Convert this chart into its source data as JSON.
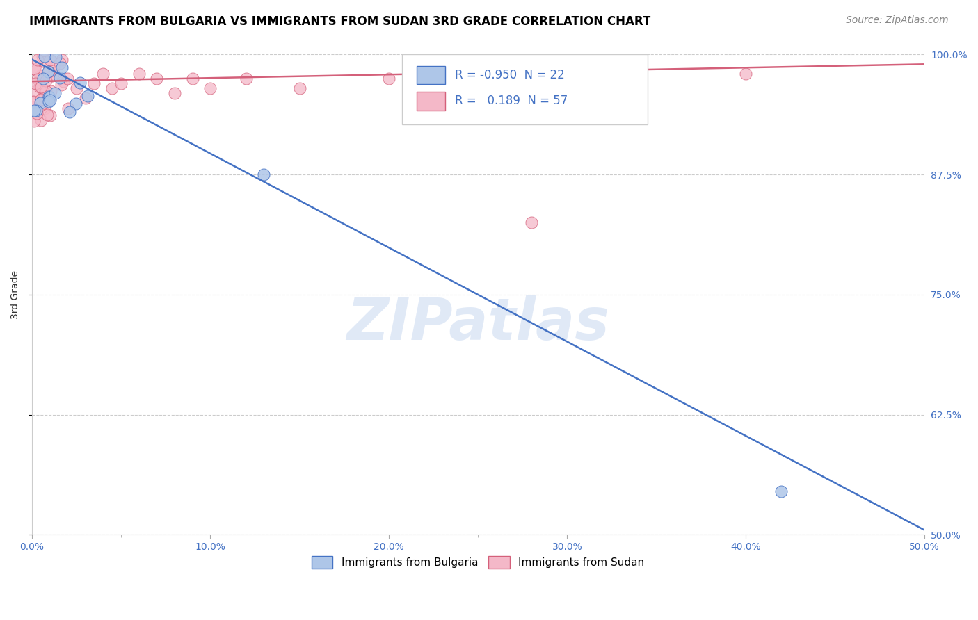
{
  "title": "IMMIGRANTS FROM BULGARIA VS IMMIGRANTS FROM SUDAN 3RD GRADE CORRELATION CHART",
  "source": "Source: ZipAtlas.com",
  "ylabel": "3rd Grade",
  "x_min": 0.0,
  "x_max": 0.5,
  "y_min": 0.5,
  "y_max": 1.0,
  "y_ticks": [
    0.5,
    0.625,
    0.75,
    0.875,
    1.0
  ],
  "y_tick_labels": [
    "50.0%",
    "62.5%",
    "75.0%",
    "87.5%",
    "100.0%"
  ],
  "watermark": "ZIPatlas",
  "legend_R_bulgaria": "-0.950",
  "legend_N_bulgaria": "22",
  "legend_R_sudan": "0.189",
  "legend_N_sudan": "57",
  "bulgaria_color": "#aec6e8",
  "sudan_color": "#f4b8c8",
  "bulgaria_line_color": "#4472c4",
  "sudan_line_color": "#d4607a",
  "background_color": "#ffffff",
  "grid_color": "#cccccc",
  "title_color": "#000000",
  "right_axis_color": "#4472c4",
  "bul_line_x0": 0.0,
  "bul_line_x1": 0.5,
  "bul_line_y0": 0.995,
  "bul_line_y1": 0.505,
  "sud_line_x0": 0.0,
  "sud_line_x1": 0.5,
  "sud_line_y0": 0.972,
  "sud_line_y1": 0.99
}
